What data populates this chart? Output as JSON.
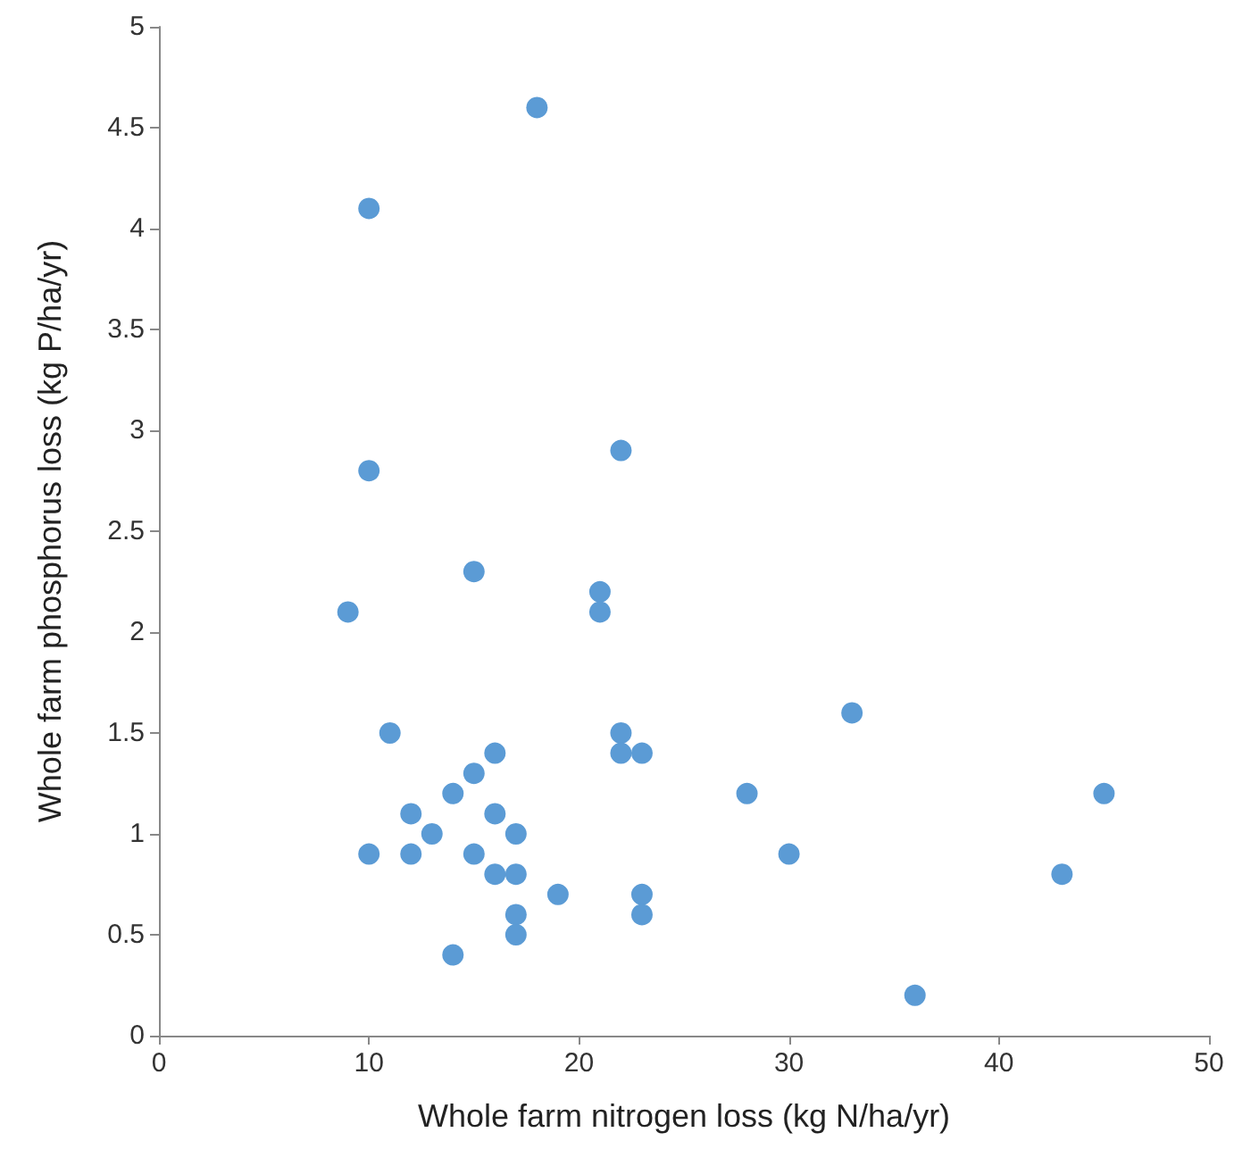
{
  "chart_data": {
    "type": "scatter",
    "xlabel": "Whole farm nitrogen loss (kg N/ha/yr)",
    "ylabel": "Whole farm phosphorus loss (kg P/ha/yr)",
    "x": [
      18,
      10,
      22,
      10,
      15,
      21,
      21,
      9,
      33,
      11,
      22,
      16,
      22,
      23,
      15,
      14,
      28,
      45,
      12,
      16,
      13,
      17,
      10,
      12,
      15,
      30,
      16,
      17,
      43,
      19,
      23,
      17,
      23,
      17,
      14,
      36
    ],
    "values": [
      4.6,
      4.1,
      2.9,
      2.8,
      2.3,
      2.2,
      2.1,
      2.1,
      1.6,
      1.5,
      1.5,
      1.4,
      1.4,
      1.4,
      1.3,
      1.2,
      1.2,
      1.2,
      1.1,
      1.1,
      1.0,
      1.0,
      0.9,
      0.9,
      0.9,
      0.9,
      0.8,
      0.8,
      0.8,
      0.7,
      0.7,
      0.6,
      0.6,
      0.5,
      0.4,
      0.2
    ],
    "color": "#5b9bd5",
    "marker": "circle",
    "grid": false,
    "xlim": [
      0,
      50
    ],
    "xticks": [
      0,
      10,
      20,
      30,
      40,
      50
    ],
    "ylim": [
      0,
      5
    ],
    "yticks": [
      0,
      0.5,
      1,
      1.5,
      2,
      2.5,
      3,
      3.5,
      4,
      4.5,
      5
    ]
  }
}
